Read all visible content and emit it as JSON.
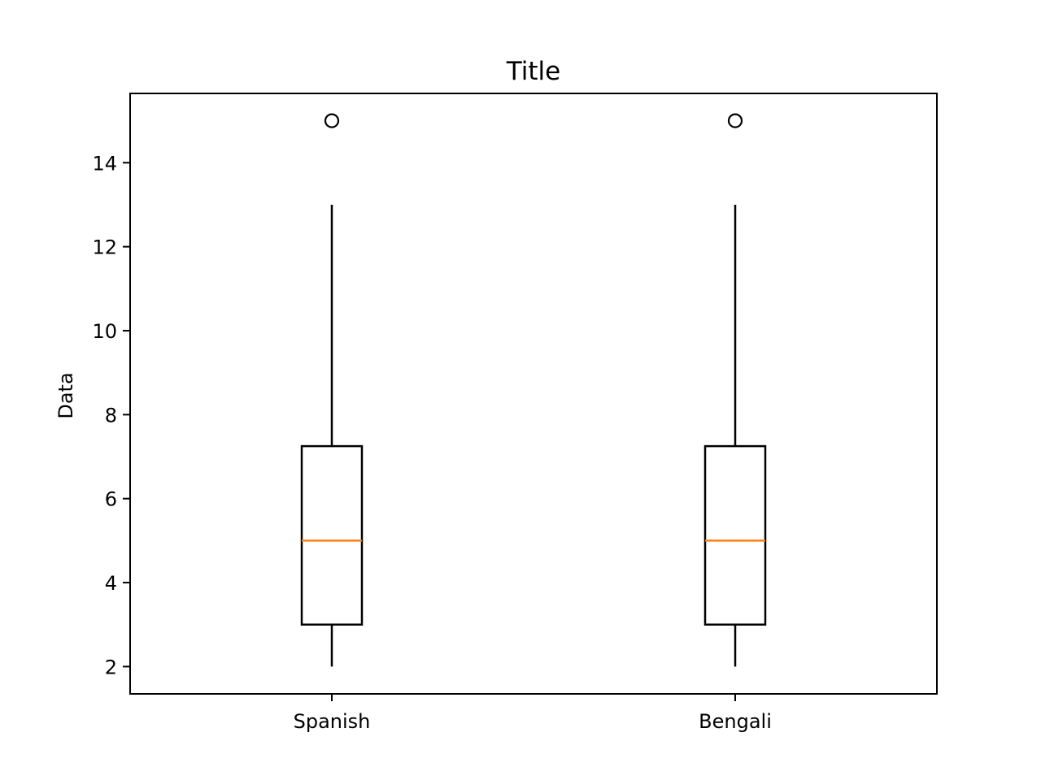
{
  "chart_data": {
    "type": "box",
    "title": "Title",
    "xlabel": "",
    "ylabel": "Data",
    "ylim": [
      1.35,
      15.65
    ],
    "yticks": [
      2,
      4,
      6,
      8,
      10,
      12,
      14
    ],
    "categories": [
      "Spanish",
      "Bengali"
    ],
    "boxes": [
      {
        "category": "Spanish",
        "whisker_low": 2,
        "q1": 3,
        "median": 5,
        "q3": 7.25,
        "whisker_high": 13,
        "outliers": [
          15
        ]
      },
      {
        "category": "Bengali",
        "whisker_low": 2,
        "q1": 3,
        "median": 5,
        "q3": 7.25,
        "whisker_high": 13,
        "outliers": [
          15
        ]
      }
    ],
    "grid": false,
    "colors": {
      "box": "#000000",
      "median": "#ff7f0e",
      "outlier": "#000000"
    }
  }
}
